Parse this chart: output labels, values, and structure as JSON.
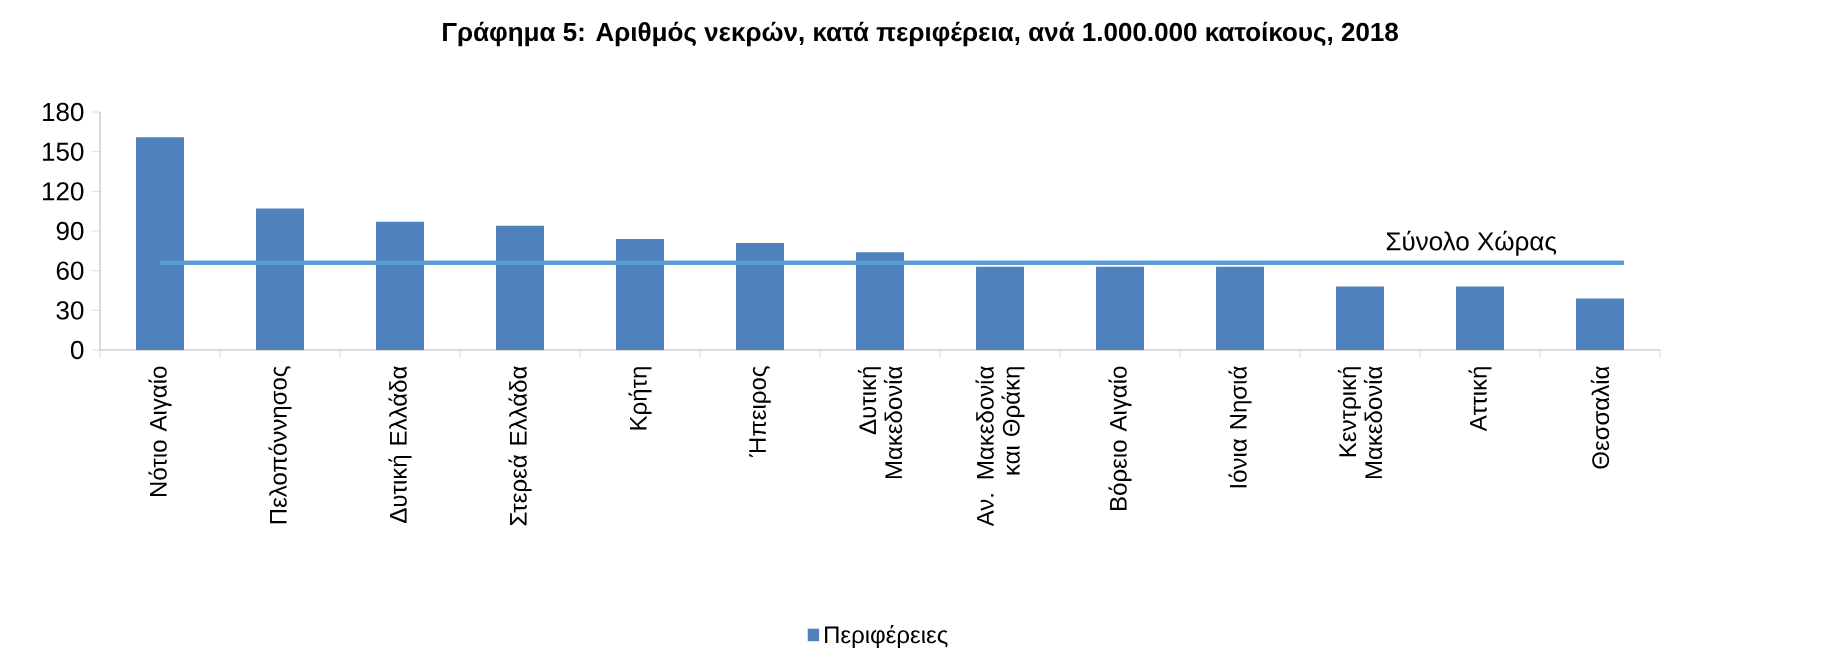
{
  "chart_data": {
    "type": "bar",
    "title": "**Γράφημα 5: Αριθμός νεκρών, κατά περιφέρεια, ανά 1.000.000 κατοίκους, 2018**",
    "categories": [
      "Νότιο Αιγαίο",
      "Πελοπόννησος",
      "Δυτική Ελλάδα",
      "Στερεά Ελλάδα",
      "Κρήτη",
      "Ήπειρος",
      "Δυτική Μακεδονία",
      "Αν. Μακεδονία και Θράκη",
      "Βόρειο Αιγαίο",
      "Ιόνια Νησιά",
      "Κεντρική Μακεδονία",
      "Αττική",
      "Θεσσαλία"
    ],
    "series": [
      {
        "name": "Περιφέρειες",
        "color": "#4f81bd",
        "values": [
          161,
          107,
          97,
          94,
          84,
          81,
          74,
          63,
          63,
          63,
          48,
          48,
          39
        ]
      }
    ],
    "ylim": [
      0,
      180
    ],
    "yticks": [
      0,
      30,
      60,
      90,
      120,
      150,
      180
    ],
    "ref_lines": [
      {
        "axis": "y",
        "value": 66,
        "label": "Σύνολο Χώρας",
        "color": "#5b9bd5"
      }
    ],
    "legend": "bottom",
    "grid": false
  }
}
